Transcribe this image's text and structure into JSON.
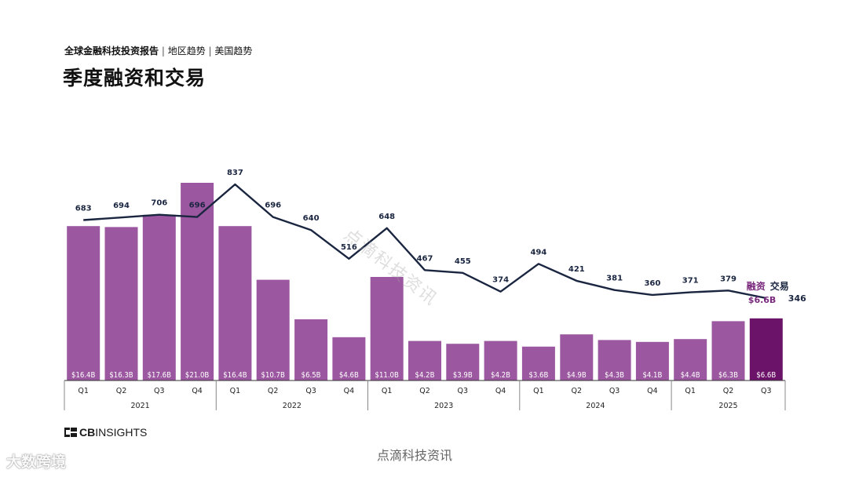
{
  "header": {
    "breadcrumb_main": "全球金融科技投资报告",
    "breadcrumb_sep1": " | ",
    "breadcrumb_region": "地区趋势",
    "breadcrumb_sep2": " | ",
    "breadcrumb_country": "美国趋势",
    "title": "季度融资和交易"
  },
  "footer": {
    "brand_cb": "CB",
    "brand_rest": "INSIGHTS",
    "watermark_center": "点滴科技资讯",
    "watermark_diagonal": "点滴科技资讯",
    "watermark_corner": "大数跨境"
  },
  "colors": {
    "bar": "#9b579f",
    "bar_highlight": "#6b1369",
    "line": "#1a2540",
    "legend_funding": "#7a2a7c",
    "axis": "#333333"
  },
  "chart_data": {
    "type": "bar",
    "title": "季度融资和交易",
    "categories": [
      "Q1",
      "Q2",
      "Q3",
      "Q4",
      "Q1",
      "Q2",
      "Q3",
      "Q4",
      "Q1",
      "Q2",
      "Q3",
      "Q4",
      "Q1",
      "Q2",
      "Q3",
      "Q4",
      "Q1",
      "Q2",
      "Q3"
    ],
    "years": [
      {
        "label": "2021",
        "quarters": 4
      },
      {
        "label": "2022",
        "quarters": 4
      },
      {
        "label": "2023",
        "quarters": 4
      },
      {
        "label": "2024",
        "quarters": 4
      },
      {
        "label": "2025",
        "quarters": 3
      }
    ],
    "series": [
      {
        "name": "融资",
        "type": "bar",
        "values": [
          16.4,
          16.3,
          17.6,
          21.0,
          16.4,
          10.7,
          6.5,
          4.6,
          11.0,
          4.2,
          3.9,
          4.2,
          3.6,
          4.9,
          4.3,
          4.1,
          4.4,
          6.3,
          6.6
        ],
        "labels": [
          "$16.4B",
          "$16.3B",
          "$17.6B",
          "$21.0B",
          "$16.4B",
          "$10.7B",
          "$6.5B",
          "$4.6B",
          "$11.0B",
          "$4.2B",
          "$3.9B",
          "$4.2B",
          "$3.6B",
          "$4.9B",
          "$4.3B",
          "$4.1B",
          "$4.4B",
          "$6.3B",
          "$6.6B"
        ]
      },
      {
        "name": "交易",
        "type": "line",
        "values": [
          683,
          694,
          706,
          696,
          837,
          696,
          640,
          516,
          648,
          467,
          455,
          374,
          494,
          421,
          381,
          360,
          371,
          379,
          346
        ]
      }
    ],
    "legend": {
      "funding": "融资",
      "deals": "交易",
      "placement": "right, beside last point"
    }
  }
}
